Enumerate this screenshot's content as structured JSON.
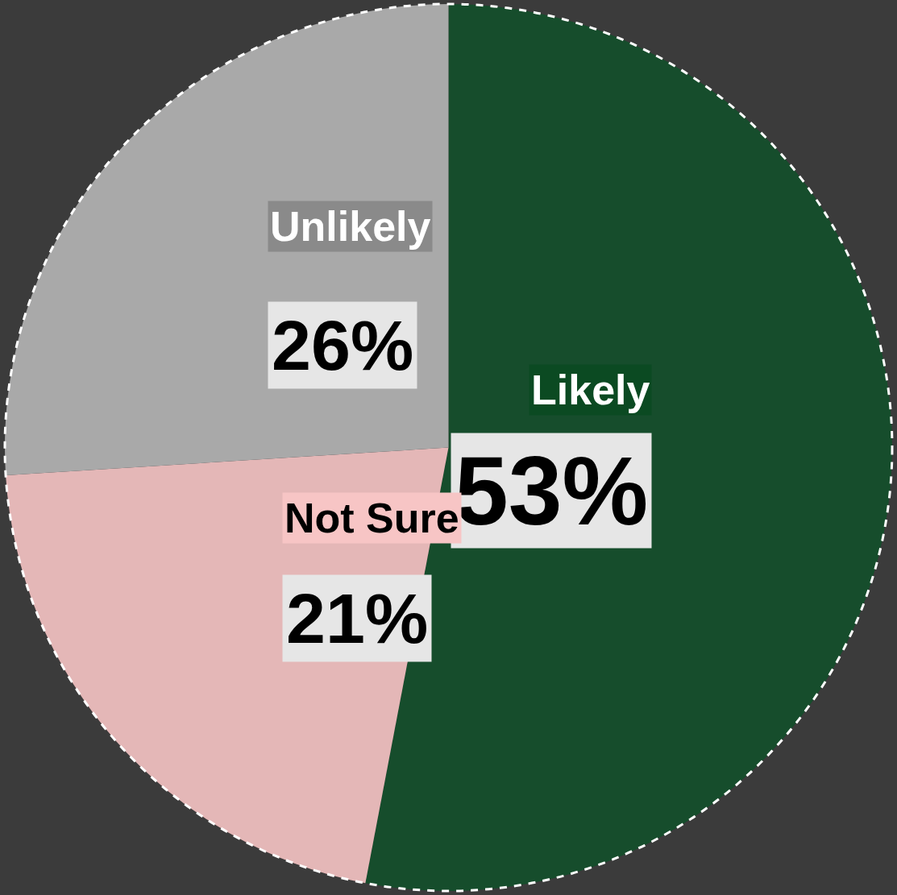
{
  "chart_data": {
    "type": "pie",
    "categories": [
      "Likely",
      "Not Sure",
      "Unlikely"
    ],
    "values": [
      53,
      21,
      26
    ],
    "value_labels": [
      "53%",
      "21%",
      "26%"
    ],
    "colors": [
      "#164d2c",
      "#e4b7b7",
      "#a9a9a9"
    ],
    "data_labels": true
  }
}
